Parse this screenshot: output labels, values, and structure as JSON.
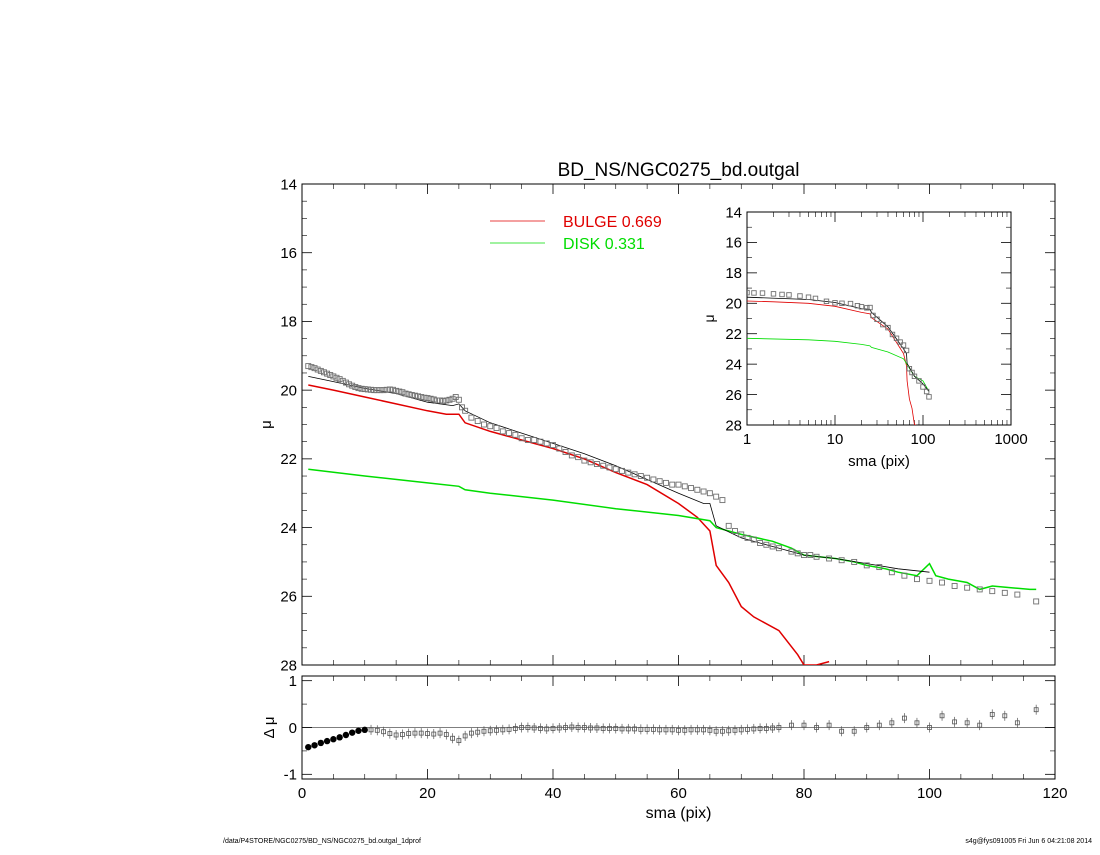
{
  "footer": {
    "left": "/data/P4STORE/NGC0275/BD_NS/NGC0275_bd.outgal_1dprof",
    "right": "s4g@fys091005  Fri Jun  6 04:21:08 2014"
  },
  "colors": {
    "bulge": "#e00000",
    "disk": "#00dd00",
    "total": "#000000",
    "obs": "#707070"
  },
  "chart_data": [
    {
      "type": "line",
      "title": "BD_NS/NGC0275_bd.outgal",
      "xlabel": "",
      "ylabel": "μ",
      "xlim": [
        0,
        120
      ],
      "ylim": [
        28,
        14
      ],
      "yaxis_inverted": true,
      "yticks": [
        14,
        16,
        18,
        20,
        22,
        24,
        26,
        28
      ],
      "legend": {
        "placement": "top-center",
        "entries": [
          {
            "label": "BULGE  0.669",
            "color": "#e00000"
          },
          {
            "label": "DISK  0.331",
            "color": "#00dd00"
          }
        ]
      },
      "series": [
        {
          "name": "BULGE  0.669",
          "style": "line",
          "color": "#e00000",
          "x": [
            1,
            5,
            10,
            15,
            20,
            23,
            25,
            26,
            30,
            35,
            40,
            45,
            50,
            55,
            60,
            63,
            65,
            66,
            68,
            70,
            72,
            76,
            79,
            80,
            82,
            84
          ],
          "y": [
            19.85,
            20.0,
            20.2,
            20.4,
            20.6,
            20.7,
            20.7,
            20.95,
            21.2,
            21.45,
            21.7,
            22.0,
            22.4,
            22.75,
            23.3,
            23.7,
            24.1,
            25.1,
            25.6,
            26.3,
            26.6,
            27.0,
            27.7,
            28.0,
            28.0,
            27.9
          ]
        },
        {
          "name": "DISK  0.331",
          "style": "line",
          "color": "#00dd00",
          "x": [
            1,
            10,
            20,
            25,
            26,
            30,
            40,
            50,
            60,
            65,
            66,
            70,
            75,
            78,
            80,
            85,
            88,
            90,
            93,
            95,
            98,
            100,
            101,
            103,
            106,
            108,
            110,
            113,
            116,
            117
          ],
          "y": [
            22.3,
            22.5,
            22.7,
            22.8,
            22.9,
            23.0,
            23.2,
            23.45,
            23.65,
            23.8,
            24.0,
            24.2,
            24.4,
            24.6,
            24.8,
            24.9,
            25.0,
            25.1,
            25.2,
            25.3,
            25.4,
            25.05,
            25.4,
            25.5,
            25.6,
            25.8,
            25.7,
            25.75,
            25.8,
            25.8
          ]
        },
        {
          "name": "",
          "style": "line",
          "color": "#000000",
          "x": [
            1,
            5,
            10,
            15,
            20,
            24,
            25,
            26,
            30,
            35,
            40,
            45,
            50,
            55,
            60,
            64,
            65,
            66,
            70,
            75,
            78,
            80,
            85,
            90,
            95,
            100
          ],
          "y": [
            19.6,
            19.75,
            19.95,
            20.1,
            20.35,
            20.45,
            20.4,
            20.6,
            20.95,
            21.25,
            21.55,
            21.85,
            22.2,
            22.6,
            23.0,
            23.3,
            23.3,
            23.95,
            24.3,
            24.55,
            24.7,
            24.8,
            24.9,
            25.05,
            25.2,
            25.3
          ]
        },
        {
          "name": "",
          "style": "markers",
          "color": "#707070",
          "x": [
            1,
            1.5,
            2,
            2.5,
            3,
            3.5,
            4,
            4.5,
            5,
            5.5,
            6,
            6.5,
            7,
            7.5,
            8,
            8.5,
            9,
            9.5,
            10,
            10.5,
            11,
            11.5,
            12,
            12.5,
            13,
            13.5,
            14,
            14.5,
            15,
            15.5,
            16,
            16.5,
            17,
            17.5,
            18,
            18.5,
            19,
            19.5,
            20,
            20.5,
            21,
            21.5,
            22,
            22.5,
            23,
            23.5,
            24,
            24.5,
            25,
            25.5,
            26,
            27,
            28,
            29,
            30,
            31,
            32,
            33,
            34,
            35,
            36,
            37,
            38,
            39,
            40,
            41,
            42,
            43,
            44,
            45,
            46,
            47,
            48,
            49,
            50,
            51,
            52,
            53,
            54,
            55,
            56,
            57,
            58,
            59,
            60,
            61,
            62,
            63,
            64,
            65,
            66,
            67,
            68,
            69,
            70,
            71,
            72,
            73,
            74,
            75,
            76,
            78,
            79,
            80,
            81,
            82,
            84,
            86,
            88,
            90,
            92,
            94,
            96,
            98,
            100,
            102,
            104,
            106,
            108,
            110,
            112,
            114,
            117
          ],
          "y": [
            19.3,
            19.33,
            19.36,
            19.4,
            19.44,
            19.48,
            19.52,
            19.56,
            19.6,
            19.64,
            19.68,
            19.73,
            19.78,
            19.83,
            19.87,
            19.91,
            19.94,
            19.96,
            19.97,
            19.98,
            19.99,
            20.0,
            20.0,
            20.0,
            20.0,
            19.99,
            19.98,
            19.99,
            20.02,
            20.04,
            20.06,
            20.1,
            20.12,
            20.14,
            20.16,
            20.18,
            20.2,
            20.22,
            20.23,
            20.25,
            20.27,
            20.3,
            20.3,
            20.32,
            20.3,
            20.28,
            20.25,
            20.2,
            20.28,
            20.5,
            20.6,
            20.8,
            20.9,
            21.0,
            21.05,
            21.1,
            21.2,
            21.25,
            21.3,
            21.4,
            21.45,
            21.45,
            21.5,
            21.55,
            21.6,
            21.7,
            21.8,
            21.9,
            21.95,
            22.05,
            22.1,
            22.15,
            22.2,
            22.25,
            22.3,
            22.35,
            22.4,
            22.45,
            22.5,
            22.55,
            22.6,
            22.65,
            22.7,
            22.75,
            22.75,
            22.8,
            22.85,
            22.9,
            22.95,
            23.0,
            23.1,
            23.2,
            23.95,
            24.1,
            24.2,
            24.3,
            24.35,
            24.45,
            24.5,
            24.55,
            24.6,
            24.7,
            24.75,
            24.8,
            24.8,
            24.85,
            24.9,
            24.95,
            25.0,
            25.1,
            25.15,
            25.3,
            25.4,
            25.5,
            25.55,
            25.6,
            25.7,
            25.75,
            25.8,
            25.85,
            25.9,
            25.95,
            26.15
          ]
        }
      ]
    },
    {
      "type": "scatter",
      "title": "",
      "xlabel": "sma (pix)",
      "ylabel": "Δ μ",
      "xlim": [
        0,
        120
      ],
      "ylim": [
        -1.1,
        1.1
      ],
      "yticks": [
        1,
        0,
        -1
      ],
      "xticks": [
        0,
        20,
        40,
        60,
        80,
        100,
        120
      ],
      "series": [
        {
          "name": "",
          "style": "markers",
          "color": "#000000",
          "x": [
            1,
            2,
            3,
            4,
            5,
            6,
            7,
            8,
            9,
            10,
            11,
            12,
            13,
            14,
            15,
            16,
            17,
            18,
            19,
            20,
            21,
            22,
            23,
            24,
            25,
            26,
            27,
            28,
            29,
            30,
            31,
            32,
            33,
            34,
            35,
            36,
            37,
            38,
            39,
            40,
            41,
            42,
            43,
            44,
            45,
            46,
            47,
            48,
            49,
            50,
            51,
            52,
            53,
            54,
            55,
            56,
            57,
            58,
            59,
            60,
            61,
            62,
            63,
            64,
            65,
            66,
            67,
            68,
            69,
            70,
            71,
            72,
            73,
            74,
            75,
            76,
            78,
            80,
            82,
            84,
            86,
            88,
            90,
            92,
            94,
            96,
            98,
            100,
            102,
            104,
            106,
            108,
            110,
            112,
            114,
            117
          ],
          "y": [
            -0.42,
            -0.38,
            -0.33,
            -0.29,
            -0.25,
            -0.21,
            -0.16,
            -0.11,
            -0.07,
            -0.05,
            -0.05,
            -0.06,
            -0.09,
            -0.13,
            -0.16,
            -0.15,
            -0.13,
            -0.12,
            -0.12,
            -0.13,
            -0.14,
            -0.12,
            -0.15,
            -0.23,
            -0.28,
            -0.18,
            -0.12,
            -0.1,
            -0.08,
            -0.07,
            -0.06,
            -0.05,
            -0.04,
            -0.02,
            0.0,
            0.0,
            -0.01,
            -0.02,
            -0.03,
            -0.02,
            -0.01,
            0.0,
            0.01,
            0.0,
            0.0,
            -0.01,
            -0.01,
            -0.02,
            -0.02,
            -0.02,
            -0.03,
            -0.03,
            -0.03,
            -0.04,
            -0.04,
            -0.04,
            -0.05,
            -0.05,
            -0.05,
            -0.06,
            -0.06,
            -0.05,
            -0.05,
            -0.05,
            -0.06,
            -0.08,
            -0.08,
            -0.07,
            -0.06,
            -0.05,
            -0.04,
            -0.03,
            -0.02,
            -0.02,
            -0.01,
            0.0,
            0.05,
            0.05,
            0.0,
            0.05,
            -0.08,
            -0.08,
            0.0,
            0.05,
            0.1,
            0.2,
            0.1,
            0.0,
            0.25,
            0.12,
            0.1,
            0.05,
            0.28,
            0.25,
            0.1,
            0.38
          ]
        }
      ]
    },
    {
      "type": "line",
      "title": "",
      "xlabel": "sma (pix)",
      "ylabel": "μ",
      "xscale": "log",
      "xlim": [
        1,
        1000
      ],
      "ylim": [
        28,
        14
      ],
      "yaxis_inverted": true,
      "yticks": [
        14,
        16,
        18,
        20,
        22,
        24,
        26,
        28
      ],
      "xticks": [
        1,
        10,
        100,
        1000
      ],
      "series": [
        {
          "name": "",
          "style": "line",
          "color": "#e00000",
          "x": [
            1,
            2,
            5,
            10,
            20,
            25,
            26,
            40,
            60,
            65,
            66,
            70,
            75,
            80,
            84
          ],
          "y": [
            19.85,
            19.9,
            20.0,
            20.2,
            20.6,
            20.7,
            20.95,
            21.7,
            23.3,
            24.1,
            25.1,
            26.3,
            26.9,
            28.0,
            28.0
          ]
        },
        {
          "name": "",
          "style": "line",
          "color": "#00dd00",
          "x": [
            1,
            5,
            10,
            20,
            25,
            26,
            40,
            60,
            80,
            100,
            117
          ],
          "y": [
            22.3,
            22.4,
            22.5,
            22.7,
            22.8,
            22.9,
            23.2,
            23.65,
            24.8,
            25.1,
            25.8
          ]
        },
        {
          "name": "",
          "style": "line",
          "color": "#000000",
          "x": [
            1,
            5,
            10,
            20,
            25,
            26,
            40,
            60,
            65,
            66,
            80,
            100,
            117
          ],
          "y": [
            19.6,
            19.75,
            19.95,
            20.35,
            20.4,
            20.6,
            21.55,
            23.0,
            23.3,
            23.95,
            24.8,
            25.3,
            25.8
          ]
        },
        {
          "name": "",
          "style": "markers",
          "color": "#707070",
          "x": [
            1,
            1.2,
            1.5,
            2,
            2.5,
            3,
            4,
            5,
            6,
            8,
            10,
            12,
            15,
            18,
            20,
            23,
            25,
            27,
            30,
            35,
            40,
            45,
            50,
            55,
            60,
            65,
            70,
            75,
            80,
            90,
            100,
            110,
            117
          ],
          "y": [
            19.3,
            19.32,
            19.33,
            19.38,
            19.42,
            19.45,
            19.52,
            19.6,
            19.68,
            19.87,
            19.97,
            20.0,
            20.02,
            20.16,
            20.23,
            20.3,
            20.28,
            20.8,
            21.05,
            21.4,
            21.6,
            22.05,
            22.3,
            22.55,
            22.75,
            23.1,
            24.3,
            24.55,
            24.8,
            25.1,
            25.5,
            25.8,
            26.15
          ]
        }
      ]
    }
  ]
}
